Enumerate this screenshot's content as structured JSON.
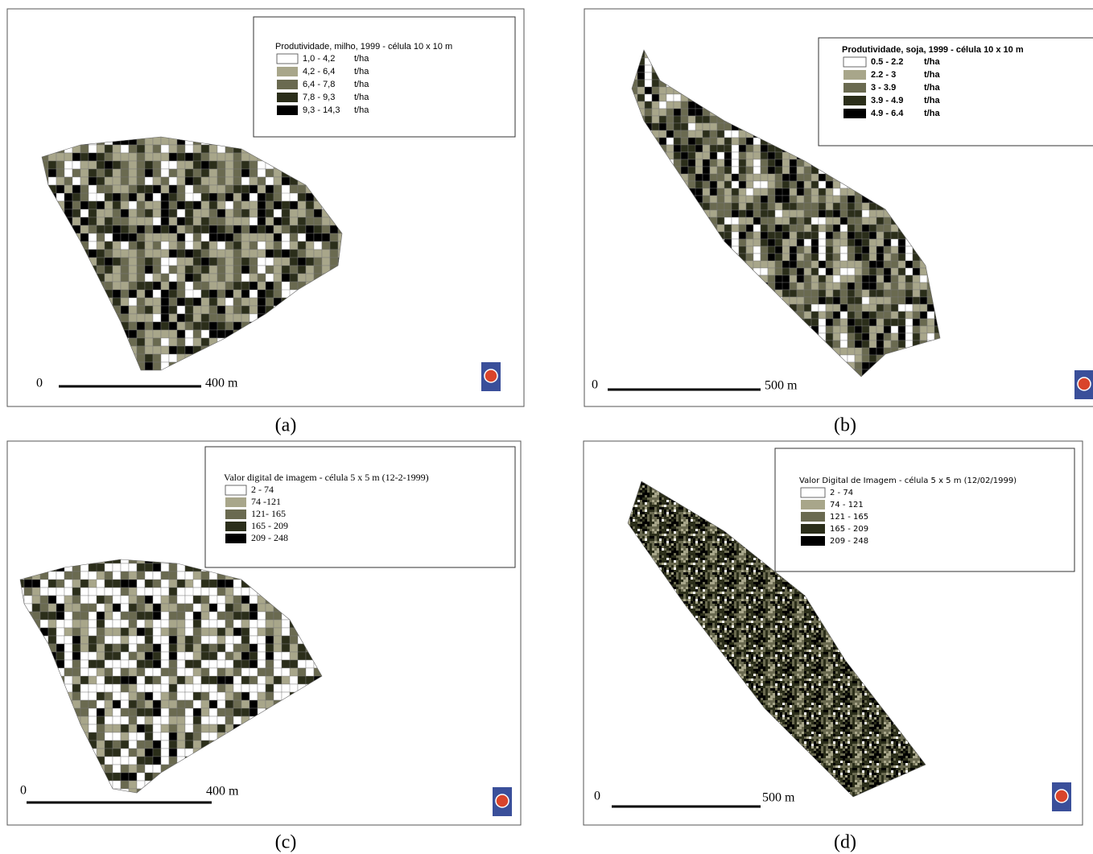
{
  "panels": [
    {
      "caption": "(a)",
      "legend": {
        "title": "Produtividade, milho, 1999 - célula 10 x 10 m",
        "items": [
          {
            "range": "1,0 - 4,2",
            "unit": "t/ha"
          },
          {
            "range": "4,2 - 6,4",
            "unit": "t/ha"
          },
          {
            "range": "6,4 - 7,8",
            "unit": "t/ha"
          },
          {
            "range": "7,8 - 9,3",
            "unit": "t/ha"
          },
          {
            "range": "9,3 - 14,3",
            "unit": "t/ha"
          }
        ]
      },
      "scale": {
        "start": "0",
        "end": "400 m"
      }
    },
    {
      "caption": "(b)",
      "legend": {
        "title": "Produtividade, soja, 1999 - célula 10 x 10 m",
        "items": [
          {
            "range": "0.5 - 2.2",
            "unit": "t/ha"
          },
          {
            "range": "2.2 - 3",
            "unit": "t/ha"
          },
          {
            "range": "3 - 3.9",
            "unit": "t/ha"
          },
          {
            "range": "3.9 - 4.9",
            "unit": "t/ha"
          },
          {
            "range": "4.9 - 6.4",
            "unit": "t/ha"
          }
        ]
      },
      "scale": {
        "start": "0",
        "end": "500 m"
      }
    },
    {
      "caption": "(c)",
      "legend": {
        "title": "Valor digital de imagem - célula 5 x 5 m (12-2-1999)",
        "items": [
          {
            "range": "2 - 74"
          },
          {
            "range": "74 -121"
          },
          {
            "range": "121- 165"
          },
          {
            "range": "165 - 209"
          },
          {
            "range": "209 - 248"
          }
        ]
      },
      "scale": {
        "start": "0",
        "end": "400 m"
      }
    },
    {
      "caption": "(d)",
      "legend": {
        "title": "Valor Digital de Imagem - célula 5 x 5 m (12/02/1999)",
        "items": [
          {
            "range": "2 - 74"
          },
          {
            "range": "74 - 121"
          },
          {
            "range": "121 - 165"
          },
          {
            "range": "165 - 209"
          },
          {
            "range": "209 - 248"
          }
        ]
      },
      "scale": {
        "start": "0",
        "end": "500 m"
      }
    }
  ]
}
